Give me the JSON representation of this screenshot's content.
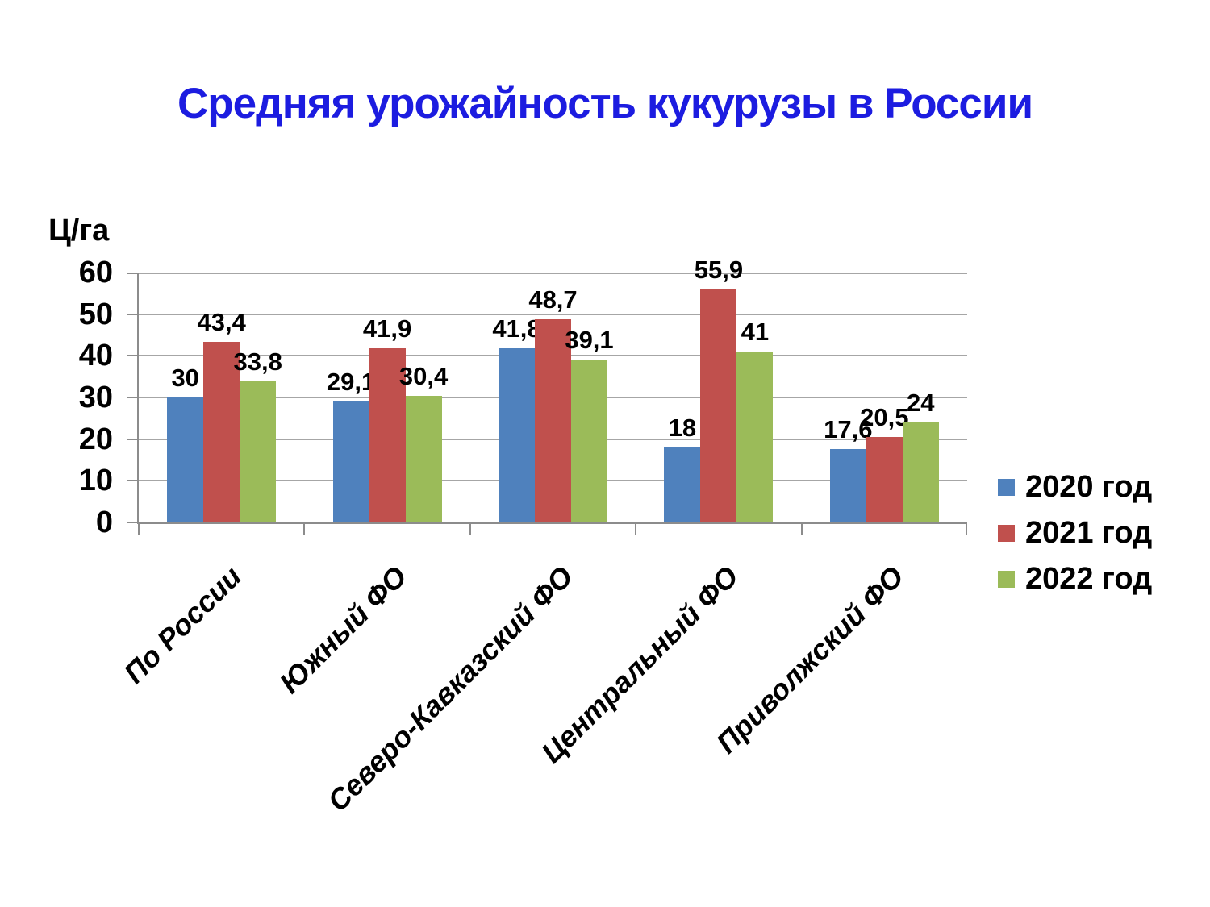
{
  "chart_data": {
    "type": "bar",
    "title": "Средняя урожайность кукурузы в России",
    "ylabel": "Ц/га",
    "xlabel": "",
    "ylim": [
      0,
      60
    ],
    "ytick_step": 10,
    "y_tick_labels": [
      "60",
      "50",
      "40",
      "30",
      "20",
      "10",
      "0"
    ],
    "grid": true,
    "legend_position": "right",
    "categories": [
      "По  России",
      "Южный ФО",
      "Северо-Кавказский ФО",
      "Центральный ФО",
      "Приволжский ФО"
    ],
    "series": [
      {
        "name": "2020 год",
        "color": "#4f81bd",
        "values": [
          30,
          29.1,
          41.8,
          18,
          17.6
        ],
        "labels": [
          "30",
          "29,1",
          "41,8",
          "18",
          "17,6"
        ]
      },
      {
        "name": "2021 год",
        "color": "#c0504d",
        "values": [
          43.4,
          41.9,
          48.7,
          55.9,
          20.5
        ],
        "labels": [
          "43,4",
          "41,9",
          "48,7",
          "55,9",
          "20,5"
        ]
      },
      {
        "name": "2022 год",
        "color": "#9bbb59",
        "values": [
          33.8,
          30.4,
          39.1,
          41,
          24
        ],
        "labels": [
          "33,8",
          "30,4",
          "39,1",
          "41",
          "24"
        ]
      }
    ],
    "colors": {
      "title": "#1c1ce0",
      "axis": "#8c8c8c",
      "gridline": "#a6a6a6",
      "text": "#000000",
      "background": "#ffffff"
    }
  }
}
